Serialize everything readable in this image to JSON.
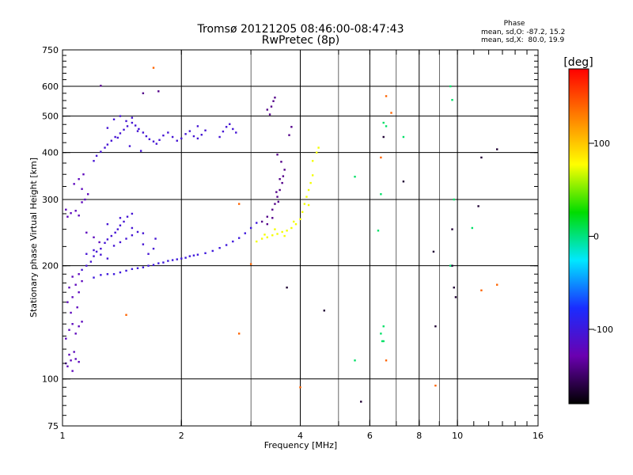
{
  "chart_data": {
    "type": "scatter",
    "title": "Tromsø 20121205 08:46:00-08:47:43",
    "subtitle": "RwPretec (8p)",
    "xlabel": "Frequency [MHz]",
    "ylabel": "Stationary phase Virtual Height [km]",
    "x_scale": "log2",
    "y_scale": "log",
    "xlim": [
      1,
      16
    ],
    "ylim": [
      75,
      750
    ],
    "x_ticks": [
      1,
      2,
      4,
      6,
      8,
      10,
      16
    ],
    "x_tick_labels": [
      "1",
      "2",
      "4",
      "6",
      "8",
      "10",
      "16"
    ],
    "y_ticks": [
      75,
      100,
      200,
      300,
      400,
      500,
      600,
      750
    ],
    "y_tick_labels": [
      "75",
      "100",
      "200",
      "300",
      "400",
      "500",
      "600",
      "750"
    ],
    "grid": true,
    "phase_info": {
      "heading": "Phase",
      "line_o": "mean, sd,O: -87.2, 15.2",
      "line_x": "mean, sd,X:  80.0, 19.9"
    },
    "colorbar": {
      "label": "[deg]",
      "range": [
        -180,
        180
      ],
      "ticks": [
        100,
        0,
        -100
      ],
      "tick_labels": [
        "100",
        "0",
        "-100"
      ],
      "stops": [
        "#000000",
        "#6a00b0",
        "#1a2cff",
        "#00e8ff",
        "#00dc00",
        "#ffff00",
        "#ff8000",
        "#ff0000"
      ]
    },
    "series": [
      {
        "phase": -120,
        "points": [
          [
            1.02,
            110
          ],
          [
            1.03,
            108
          ],
          [
            1.05,
            112
          ],
          [
            1.06,
            105
          ],
          [
            1.04,
            116
          ],
          [
            1.07,
            118
          ],
          [
            1.08,
            113
          ],
          [
            1.1,
            111
          ],
          [
            1.02,
            128
          ],
          [
            1.04,
            135
          ],
          [
            1.06,
            140
          ],
          [
            1.08,
            132
          ],
          [
            1.1,
            138
          ],
          [
            1.12,
            142
          ],
          [
            1.05,
            150
          ],
          [
            1.09,
            155
          ],
          [
            1.03,
            160
          ],
          [
            1.06,
            165
          ],
          [
            1.1,
            170
          ],
          [
            1.04,
            175
          ],
          [
            1.08,
            178
          ],
          [
            1.12,
            182
          ],
          [
            1.06,
            187
          ],
          [
            1.1,
            190
          ],
          [
            1.03,
            270
          ],
          [
            1.05,
            276
          ],
          [
            1.08,
            280
          ],
          [
            1.1,
            272
          ],
          [
            1.12,
            295
          ],
          [
            1.14,
            300
          ],
          [
            1.16,
            310
          ],
          [
            1.12,
            320
          ],
          [
            1.07,
            330
          ],
          [
            1.1,
            340
          ],
          [
            1.13,
            350
          ],
          [
            1.02,
            282
          ],
          [
            1.15,
            245
          ],
          [
            1.2,
            238
          ],
          [
            1.24,
            231
          ]
        ]
      },
      {
        "phase": -105,
        "points": [
          [
            1.12,
            195
          ],
          [
            1.15,
            200
          ],
          [
            1.18,
            205
          ],
          [
            1.2,
            212
          ],
          [
            1.22,
            218
          ],
          [
            1.25,
            222
          ],
          [
            1.28,
            230
          ],
          [
            1.3,
            235
          ],
          [
            1.33,
            240
          ],
          [
            1.36,
            245
          ],
          [
            1.38,
            250
          ],
          [
            1.4,
            256
          ],
          [
            1.43,
            262
          ],
          [
            1.46,
            270
          ],
          [
            1.5,
            275
          ],
          [
            1.15,
            215
          ],
          [
            1.2,
            220
          ],
          [
            1.25,
            214
          ],
          [
            1.3,
            209
          ],
          [
            1.35,
            226
          ],
          [
            1.4,
            231
          ],
          [
            1.45,
            236
          ],
          [
            1.5,
            241
          ],
          [
            1.55,
            246
          ],
          [
            1.6,
            228
          ],
          [
            1.65,
            215
          ],
          [
            1.7,
            222
          ],
          [
            1.72,
            236
          ],
          [
            1.3,
            258
          ],
          [
            1.4,
            268
          ],
          [
            1.5,
            252
          ],
          [
            1.6,
            244
          ],
          [
            1.2,
            380
          ],
          [
            1.22,
            392
          ],
          [
            1.25,
            402
          ],
          [
            1.28,
            412
          ],
          [
            1.3,
            420
          ],
          [
            1.33,
            430
          ],
          [
            1.36,
            440
          ],
          [
            1.4,
            450
          ],
          [
            1.43,
            460
          ],
          [
            1.46,
            470
          ],
          [
            1.5,
            480
          ],
          [
            1.53,
            472
          ],
          [
            1.56,
            462
          ],
          [
            1.6,
            452
          ],
          [
            1.63,
            442
          ],
          [
            1.66,
            434
          ],
          [
            1.7,
            428
          ],
          [
            1.73,
            422
          ],
          [
            1.76,
            432
          ],
          [
            1.8,
            444
          ],
          [
            1.85,
            452
          ],
          [
            1.9,
            440
          ],
          [
            1.95,
            430
          ],
          [
            2.0,
            436
          ],
          [
            2.05,
            448
          ],
          [
            2.1,
            456
          ],
          [
            2.15,
            442
          ],
          [
            2.2,
            436
          ],
          [
            2.25,
            446
          ],
          [
            2.3,
            458
          ],
          [
            2.2,
            470
          ],
          [
            1.35,
            490
          ],
          [
            1.4,
            500
          ],
          [
            1.45,
            485
          ],
          [
            1.5,
            495
          ],
          [
            1.55,
            456
          ],
          [
            1.3,
            465
          ],
          [
            1.38,
            438
          ],
          [
            1.48,
            416
          ],
          [
            1.58,
            404
          ],
          [
            2.55,
            455
          ],
          [
            2.6,
            468
          ],
          [
            2.65,
            476
          ],
          [
            2.7,
            462
          ],
          [
            2.5,
            440
          ],
          [
            2.75,
            452
          ]
        ]
      },
      {
        "phase": -100,
        "points": [
          [
            1.2,
            186
          ],
          [
            1.25,
            189
          ],
          [
            1.3,
            190
          ],
          [
            1.35,
            190
          ],
          [
            1.4,
            192
          ],
          [
            1.45,
            194
          ],
          [
            1.5,
            196
          ],
          [
            1.55,
            197
          ],
          [
            1.6,
            198
          ],
          [
            1.65,
            200
          ],
          [
            1.7,
            201
          ],
          [
            1.75,
            203
          ],
          [
            1.8,
            204
          ],
          [
            1.85,
            206
          ],
          [
            1.9,
            207
          ],
          [
            1.95,
            208
          ],
          [
            2.0,
            209
          ],
          [
            2.05,
            210
          ],
          [
            2.1,
            212
          ],
          [
            2.15,
            213
          ],
          [
            2.2,
            214
          ],
          [
            2.3,
            216
          ],
          [
            2.4,
            219
          ],
          [
            2.5,
            223
          ],
          [
            2.6,
            227
          ],
          [
            2.7,
            232
          ],
          [
            2.8,
            237
          ],
          [
            2.9,
            244
          ],
          [
            3.0,
            252
          ],
          [
            3.1,
            260
          ]
        ]
      },
      {
        "phase": -140,
        "points": [
          [
            3.2,
            262
          ],
          [
            3.3,
            270
          ],
          [
            3.4,
            282
          ],
          [
            3.45,
            292
          ],
          [
            3.5,
            305
          ],
          [
            3.55,
            318
          ],
          [
            3.6,
            332
          ],
          [
            3.62,
            346
          ],
          [
            3.65,
            360
          ],
          [
            3.58,
            378
          ],
          [
            3.5,
            395
          ],
          [
            3.55,
            340
          ],
          [
            3.4,
            268
          ],
          [
            3.3,
            258
          ],
          [
            3.48,
            314
          ],
          [
            3.52,
            296
          ],
          [
            3.38,
            530
          ],
          [
            3.42,
            548
          ],
          [
            3.45,
            560
          ],
          [
            3.3,
            520
          ],
          [
            3.35,
            505
          ],
          [
            3.8,
            468
          ],
          [
            3.75,
            445
          ],
          [
            1.6,
            575
          ],
          [
            1.75,
            582
          ],
          [
            1.25,
            602
          ]
        ]
      },
      {
        "phase": 75,
        "points": [
          [
            3.1,
            232
          ],
          [
            3.2,
            236
          ],
          [
            3.3,
            238
          ],
          [
            3.4,
            241
          ],
          [
            3.5,
            243
          ],
          [
            3.6,
            246
          ],
          [
            3.7,
            248
          ],
          [
            3.8,
            252
          ],
          [
            3.9,
            258
          ],
          [
            4.0,
            266
          ],
          [
            4.05,
            278
          ],
          [
            4.1,
            292
          ],
          [
            4.15,
            305
          ],
          [
            4.2,
            318
          ],
          [
            4.25,
            332
          ],
          [
            4.3,
            348
          ],
          [
            3.25,
            242
          ],
          [
            3.45,
            250
          ],
          [
            3.65,
            240
          ],
          [
            3.85,
            262
          ],
          [
            4.3,
            380
          ],
          [
            4.4,
            400
          ],
          [
            4.45,
            412
          ],
          [
            4.2,
            290
          ]
        ]
      },
      {
        "phase": 5,
        "points": [
          [
            6.5,
            480
          ],
          [
            6.6,
            470
          ],
          [
            6.4,
            132
          ],
          [
            6.5,
            138
          ],
          [
            6.45,
            126
          ],
          [
            6.5,
            126
          ],
          [
            6.4,
            310
          ],
          [
            6.3,
            248
          ],
          [
            9.6,
            600
          ],
          [
            9.7,
            552
          ],
          [
            9.8,
            300
          ],
          [
            9.6,
            200
          ],
          [
            5.5,
            112
          ],
          [
            5.5,
            345
          ],
          [
            10.9,
            252
          ],
          [
            7.3,
            440
          ]
        ]
      },
      {
        "phase": 140,
        "points": [
          [
            1.7,
            672
          ],
          [
            2.8,
            292
          ],
          [
            3.0,
            202
          ],
          [
            2.8,
            132
          ],
          [
            4.0,
            95
          ],
          [
            8.8,
            96
          ],
          [
            12.6,
            178
          ],
          [
            11.5,
            172
          ],
          [
            6.6,
            112
          ],
          [
            1.45,
            148
          ],
          [
            6.4,
            388
          ],
          [
            6.6,
            565
          ],
          [
            6.8,
            510
          ]
        ]
      },
      {
        "phase": -165,
        "points": [
          [
            3.7,
            175
          ],
          [
            4.6,
            152
          ],
          [
            6.5,
            440
          ],
          [
            7.3,
            335
          ],
          [
            8.7,
            218
          ],
          [
            9.7,
            250
          ],
          [
            11.3,
            288
          ],
          [
            11.5,
            388
          ],
          [
            12.6,
            408
          ],
          [
            9.9,
            165
          ],
          [
            9.8,
            175
          ],
          [
            5.7,
            87
          ],
          [
            8.8,
            138
          ],
          [
            9.7,
            200
          ]
        ]
      }
    ]
  }
}
